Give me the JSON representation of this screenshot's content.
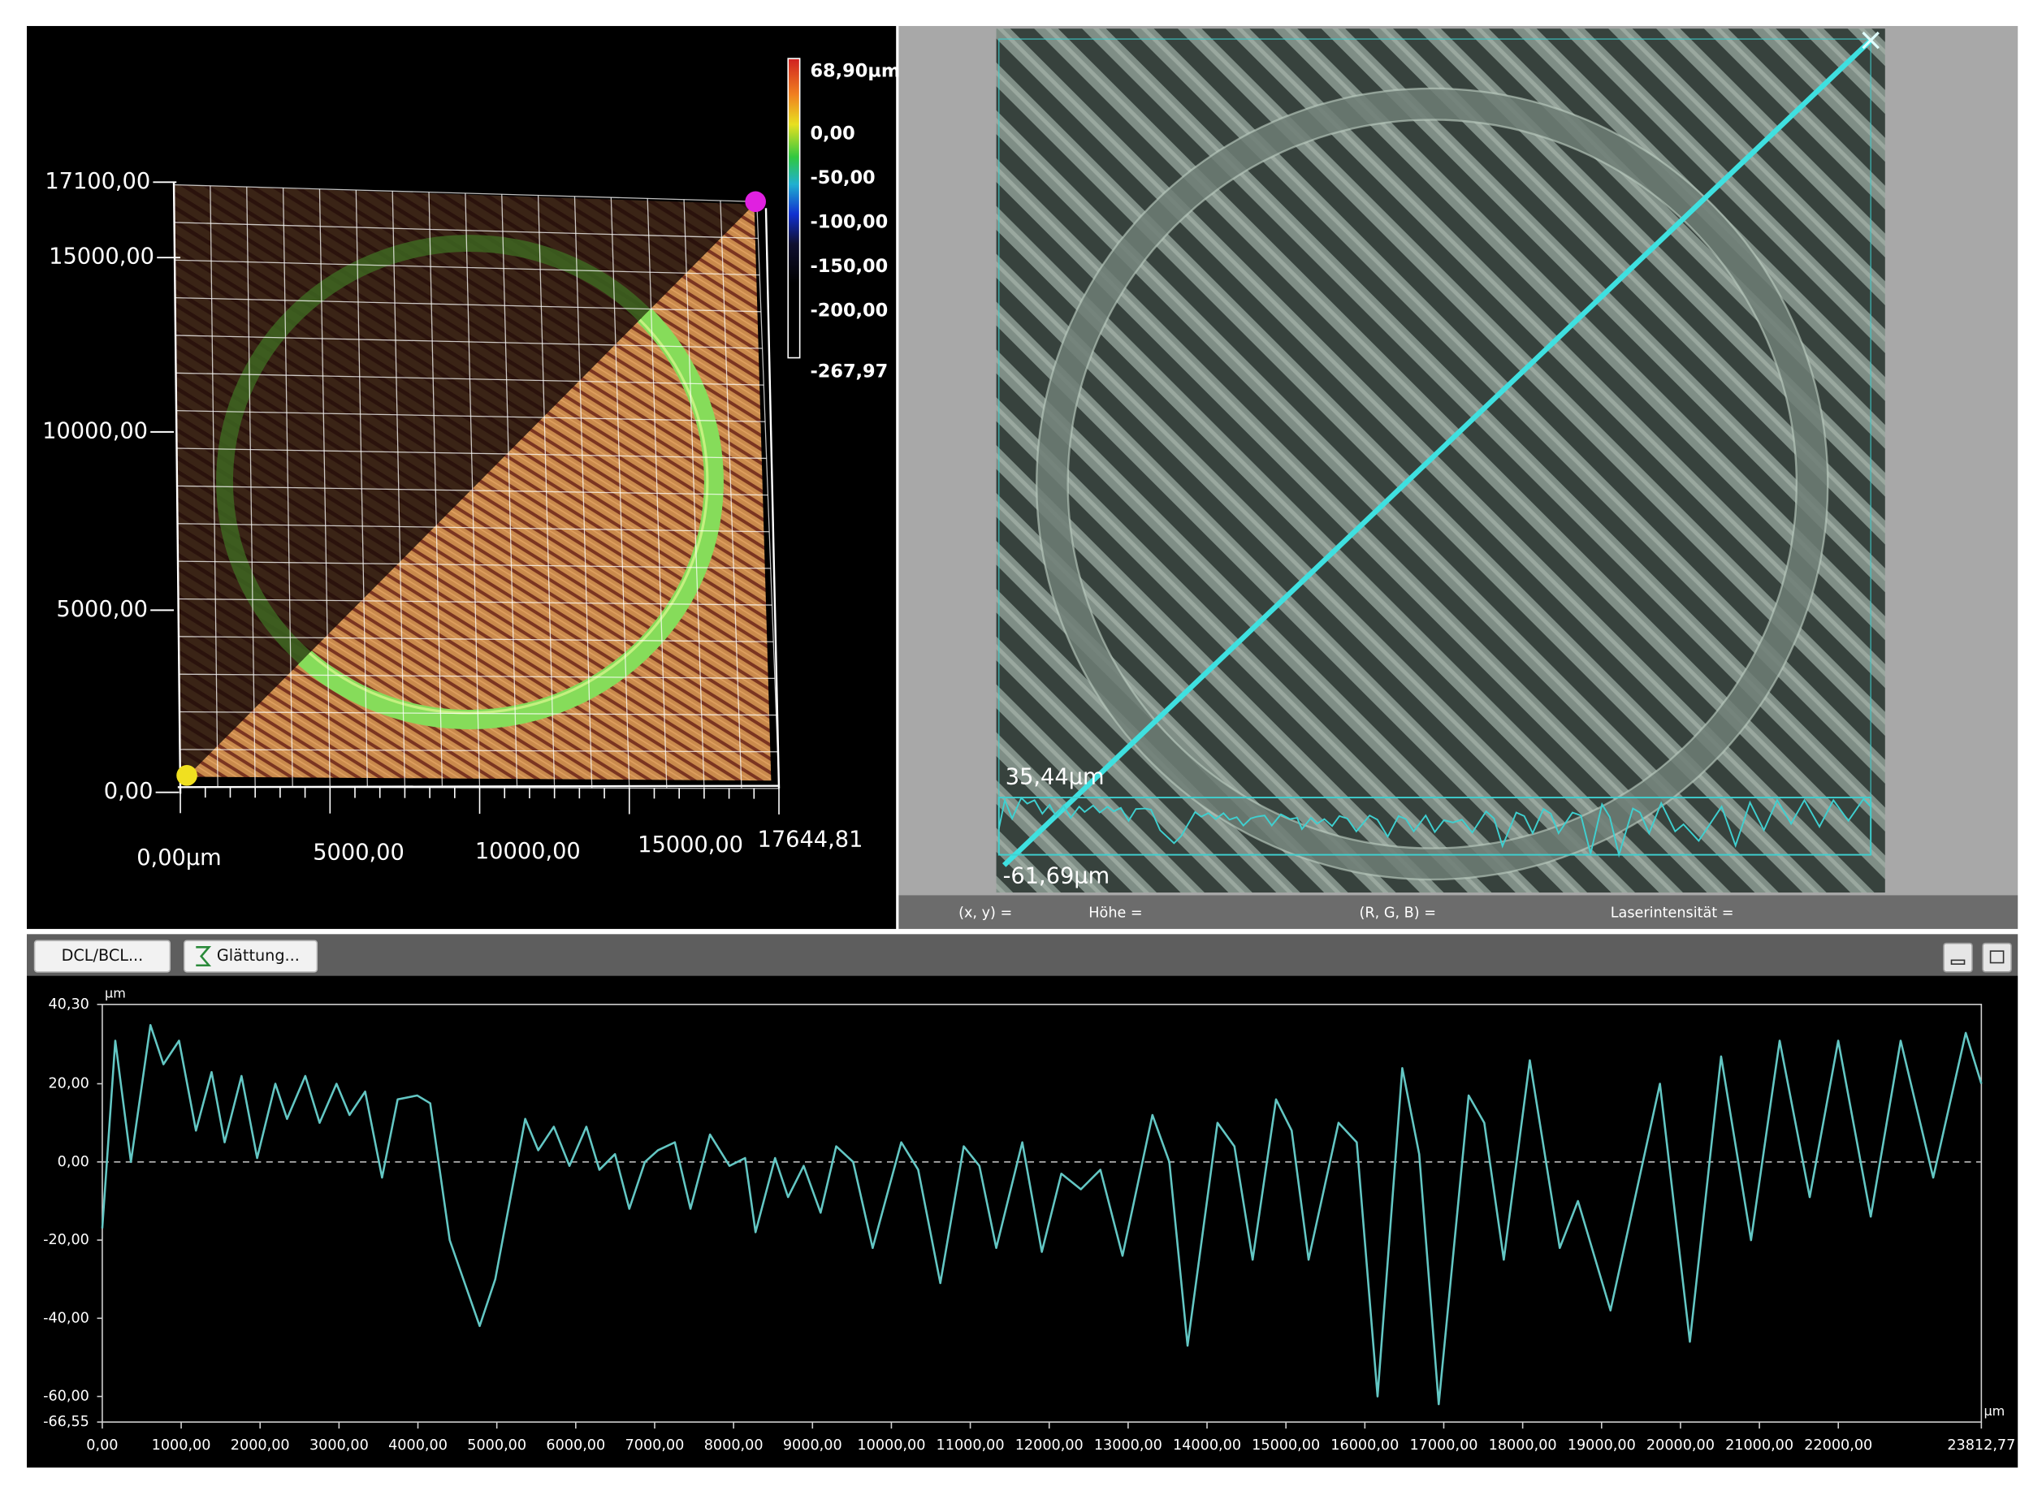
{
  "view3d": {
    "y_axis_labels": [
      "17100,00",
      "15000,00",
      "10000,00",
      "5000,00",
      "0,00"
    ],
    "x_axis_labels": [
      "0,00µm",
      "5000,00",
      "10000,00",
      "15000,00",
      "17644,81"
    ],
    "colorbar_labels": [
      "68,90µm",
      "0,00",
      "-50,00",
      "-100,00",
      "-150,00",
      "-200,00",
      "-267,97"
    ]
  },
  "optical_view": {
    "overlay_range": {
      "min": {
        "value": -61.69,
        "label": "-61,69µm"
      },
      "max": {
        "value": 35.44,
        "label": "35,44µm"
      }
    }
  },
  "status_bar": [
    "(x, y)  =",
    "Höhe  =",
    "(R, G, B)  =",
    "Laserintensität  ="
  ],
  "toolbar": {
    "buttons": [
      "DCL/BCL...",
      "Glättung..."
    ]
  },
  "chart_data": {
    "type": "line",
    "x_unit": "µm",
    "y_unit": "µm",
    "color": "#63c7c4",
    "zero_line": true,
    "xlim": [
      0,
      23812.77
    ],
    "ylim": [
      -66.55,
      40.3
    ],
    "xticks": [
      {
        "value": 0,
        "label": "0,00"
      },
      {
        "value": 1000,
        "label": "1000,00"
      },
      {
        "value": 2000,
        "label": "2000,00"
      },
      {
        "value": 3000,
        "label": "3000,00"
      },
      {
        "value": 4000,
        "label": "4000,00"
      },
      {
        "value": 5000,
        "label": "5000,00"
      },
      {
        "value": 6000,
        "label": "6000,00"
      },
      {
        "value": 7000,
        "label": "7000,00"
      },
      {
        "value": 8000,
        "label": "8000,00"
      },
      {
        "value": 9000,
        "label": "9000,00"
      },
      {
        "value": 10000,
        "label": "10000,00"
      },
      {
        "value": 11000,
        "label": "11000,00"
      },
      {
        "value": 12000,
        "label": "12000,00"
      },
      {
        "value": 13000,
        "label": "13000,00"
      },
      {
        "value": 14000,
        "label": "14000,00"
      },
      {
        "value": 15000,
        "label": "15000,00"
      },
      {
        "value": 16000,
        "label": "16000,00"
      },
      {
        "value": 17000,
        "label": "17000,00"
      },
      {
        "value": 18000,
        "label": "18000,00"
      },
      {
        "value": 19000,
        "label": "19000,00"
      },
      {
        "value": 20000,
        "label": "20000,00"
      },
      {
        "value": 21000,
        "label": "21000,00"
      },
      {
        "value": 22000,
        "label": "22000,00"
      },
      {
        "value": 23812.77,
        "label": "23812,77"
      }
    ],
    "yticks": [
      {
        "value": 40.3,
        "label": "40,30"
      },
      {
        "value": 20,
        "label": "20,00"
      },
      {
        "value": 0,
        "label": "0,00"
      },
      {
        "value": -20,
        "label": "-20,00"
      },
      {
        "value": -40,
        "label": "-40,00"
      },
      {
        "value": -60,
        "label": "-60,00"
      },
      {
        "value": -66.55,
        "label": "-66,55"
      }
    ],
    "x": [
      0,
      165,
      363,
      610,
      775,
      973,
      1187,
      1385,
      1550,
      1765,
      1962,
      2193,
      2342,
      2573,
      2754,
      2968,
      3133,
      3331,
      3545,
      3743,
      3991,
      4156,
      4403,
      4783,
      4981,
      5360,
      5525,
      5722,
      5920,
      6134,
      6299,
      6497,
      6679,
      6877,
      7042,
      7256,
      7454,
      7701,
      7949,
      8147,
      8279,
      8526,
      8691,
      8889,
      9103,
      9301,
      9515,
      9762,
      10125,
      10340,
      10620,
      10917,
      11115,
      11329,
      11659,
      11906,
      12154,
      12401,
      12649,
      12929,
      13308,
      13522,
      13753,
      14132,
      14347,
      14578,
      14874,
      15072,
      15287,
      15666,
      15897,
      16161,
      16474,
      16688,
      16936,
      17315,
      17513,
      17760,
      18090,
      18470,
      18700,
      19113,
      19740,
      20119,
      20515,
      20894,
      21257,
      21637,
      21999,
      22411,
      22791,
      23203,
      23615,
      23812.77
    ],
    "values": [
      -17,
      31,
      0,
      35,
      25,
      31,
      8,
      23,
      5,
      22,
      1,
      20,
      11,
      22,
      10,
      20,
      12,
      18,
      -4,
      16,
      17,
      15,
      -20,
      -42,
      -30,
      11,
      3,
      9,
      -1,
      9,
      -2,
      2,
      -12,
      0,
      3,
      5,
      -12,
      7,
      -1,
      1,
      -18,
      1,
      -9,
      -1,
      -13,
      4,
      0,
      -22,
      5,
      -2,
      -31,
      4,
      -1,
      -22,
      5,
      -23,
      -3,
      -7,
      -2,
      -24,
      12,
      0,
      -47,
      10,
      4,
      -25,
      16,
      8,
      -25,
      10,
      5,
      -60,
      24,
      2,
      -62,
      17,
      10,
      -25,
      26,
      -22,
      -10,
      -38,
      20,
      -46,
      27,
      -20,
      31,
      -9,
      31,
      -14,
      31,
      -4,
      33,
      20
    ]
  }
}
